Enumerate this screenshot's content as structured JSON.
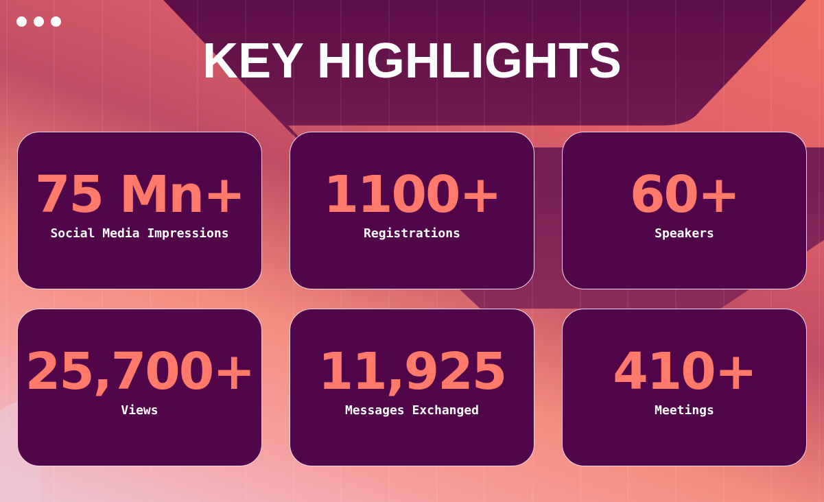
{
  "title": "KEY HIGHLIGHTS",
  "colors": {
    "card": "#52064a",
    "number": "#ff7a6a",
    "label": "#ffffff",
    "accent_dark": "#6e1a50"
  },
  "window_icon": "three-dots-icon",
  "highlights": [
    {
      "value": "75 Mn+",
      "label": "Social Media Impressions"
    },
    {
      "value": "1100+",
      "label": "Registrations"
    },
    {
      "value": "60+",
      "label": "Speakers"
    },
    {
      "value": "25,700+",
      "label": "Views"
    },
    {
      "value": "11,925",
      "label": "Messages Exchanged"
    },
    {
      "value": "410+",
      "label": "Meetings"
    }
  ]
}
